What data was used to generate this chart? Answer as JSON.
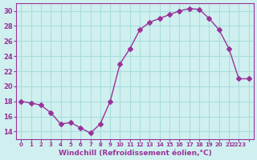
{
  "x": [
    0,
    1,
    2,
    3,
    4,
    5,
    6,
    7,
    8,
    9,
    10,
    11,
    12,
    13,
    14,
    15,
    16,
    17,
    18,
    19,
    20,
    21,
    22,
    23
  ],
  "y": [
    18.0,
    17.8,
    17.5,
    16.5,
    15.0,
    15.2,
    14.5,
    13.8,
    15.0,
    18.0,
    23.0,
    25.0,
    27.5,
    28.5,
    29.0,
    29.5,
    30.0,
    30.3,
    30.2,
    29.0,
    27.5,
    25.0,
    21.0,
    21.0
  ],
  "line_color": "#993399",
  "marker": "D",
  "marker_size": 3,
  "bg_color": "#d0f0f0",
  "grid_color": "#aadddd",
  "xlabel": "Windchill (Refroidissement éolien,°C)",
  "xlabel_color": "#993399",
  "tick_color": "#993399",
  "ylim": [
    13,
    31
  ],
  "xlim": [
    -0.5,
    23.5
  ],
  "yticks": [
    14,
    16,
    18,
    20,
    22,
    24,
    26,
    28,
    30
  ],
  "xticks": [
    0,
    1,
    2,
    3,
    4,
    5,
    6,
    7,
    8,
    9,
    10,
    11,
    12,
    13,
    14,
    15,
    16,
    17,
    18,
    19,
    20,
    21,
    22,
    23
  ],
  "xtick_labels": [
    "0",
    "1",
    "2",
    "3",
    "4",
    "5",
    "6",
    "7",
    "8",
    "9",
    "10",
    "11",
    "12",
    "13",
    "14",
    "15",
    "16",
    "17",
    "18",
    "19",
    "20",
    "21",
    "2223",
    ""
  ]
}
